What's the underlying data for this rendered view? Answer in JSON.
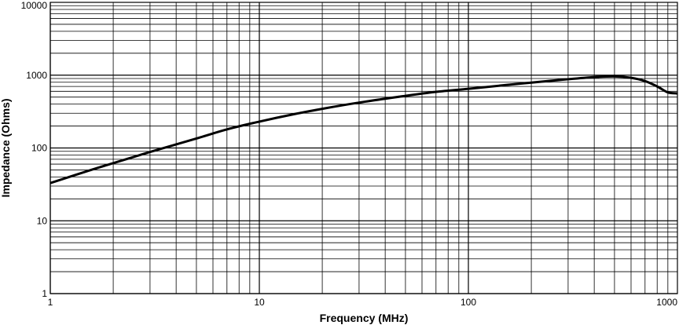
{
  "chart_data": {
    "type": "line",
    "xlabel": "Frequency (MHz)",
    "ylabel": "Impedance (Ohms)",
    "x_scale": "log",
    "y_scale": "log",
    "xlim": [
      1,
      1000
    ],
    "ylim": [
      1,
      10000
    ],
    "x_ticks": [
      "1",
      "10",
      "100",
      "1000"
    ],
    "y_ticks": [
      "1",
      "10",
      "100",
      "1000",
      "10000"
    ],
    "grid": true,
    "line_color": "#000000",
    "series": [
      {
        "x": [
          1,
          1.5,
          2,
          3,
          5,
          7,
          10,
          15,
          20,
          30,
          50,
          70,
          100,
          150,
          200,
          300,
          400,
          500,
          600,
          700,
          800,
          900,
          1000,
          1100
        ],
        "y": [
          33,
          48,
          62,
          88,
          135,
          180,
          230,
          295,
          345,
          420,
          520,
          590,
          650,
          730,
          790,
          880,
          940,
          960,
          920,
          830,
          700,
          580,
          560,
          520
        ]
      }
    ]
  }
}
